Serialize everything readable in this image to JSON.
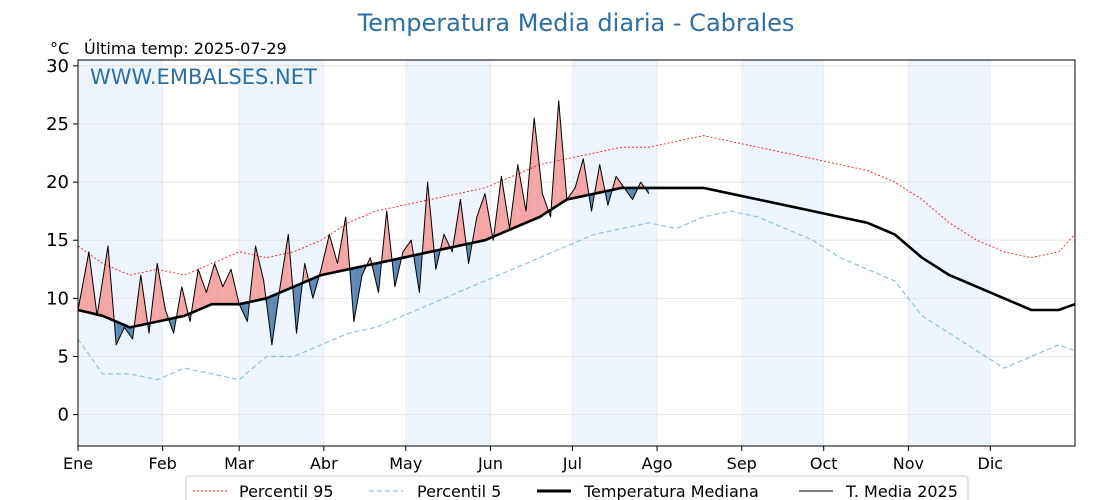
{
  "header": {
    "title": "Temperatura Media diaria - Cabrales",
    "unit": "°C",
    "last_temp": "Última temp: 2025-07-29",
    "watermark": "WWW.EMBALSES.NET"
  },
  "chart_data": {
    "type": "line",
    "title": "Temperatura Media diaria - Cabrales",
    "ylabel": "°C",
    "ylim": [
      -2.7,
      30.5
    ],
    "yticks": [
      0,
      5,
      10,
      15,
      20,
      25,
      30
    ],
    "xlim": [
      1,
      366
    ],
    "months": [
      {
        "label": "Ene",
        "day": 1
      },
      {
        "label": "Feb",
        "day": 32
      },
      {
        "label": "Mar",
        "day": 60
      },
      {
        "label": "Abr",
        "day": 91
      },
      {
        "label": "May",
        "day": 121
      },
      {
        "label": "Jun",
        "day": 152
      },
      {
        "label": "Jul",
        "day": 182
      },
      {
        "label": "Ago",
        "day": 213
      },
      {
        "label": "Sep",
        "day": 244
      },
      {
        "label": "Oct",
        "day": 274
      },
      {
        "label": "Nov",
        "day": 305
      },
      {
        "label": "Dic",
        "day": 335
      }
    ],
    "grid": true,
    "legend_position": "bottom",
    "colors": {
      "p95": "#e8201c",
      "p5": "#8cc4dc",
      "median": "#000000",
      "current": "#000000",
      "above_fill": "#f4a6a6",
      "below_fill": "#5b89b4",
      "shade": "#eef4fb"
    },
    "series": [
      {
        "key": "p95",
        "name": "Percentil 95",
        "x": [
          1,
          10,
          20,
          30,
          40,
          50,
          60,
          70,
          80,
          90,
          100,
          110,
          120,
          130,
          140,
          150,
          160,
          170,
          180,
          190,
          200,
          210,
          220,
          230,
          240,
          250,
          260,
          270,
          280,
          290,
          300,
          310,
          320,
          330,
          340,
          350,
          360,
          366
        ],
        "y": [
          14.5,
          13.0,
          12.0,
          12.5,
          12.0,
          13.0,
          14.0,
          13.5,
          14.0,
          15.0,
          16.5,
          17.5,
          18.0,
          18.5,
          19.0,
          19.5,
          20.5,
          21.5,
          22.0,
          22.5,
          23.0,
          23.0,
          23.5,
          24.0,
          23.5,
          23.0,
          22.5,
          22.0,
          21.5,
          21.0,
          20.0,
          18.5,
          16.5,
          15.0,
          14.0,
          13.5,
          14.0,
          15.5
        ]
      },
      {
        "key": "p5",
        "name": "Percentil 5",
        "x": [
          1,
          10,
          20,
          30,
          40,
          50,
          60,
          70,
          80,
          90,
          100,
          110,
          120,
          130,
          140,
          150,
          160,
          170,
          180,
          190,
          200,
          210,
          220,
          230,
          240,
          250,
          260,
          270,
          280,
          290,
          300,
          310,
          320,
          330,
          340,
          350,
          360,
          366
        ],
        "y": [
          6.5,
          3.5,
          3.5,
          3.0,
          4.0,
          3.5,
          3.0,
          5.0,
          5.0,
          6.0,
          7.0,
          7.5,
          8.5,
          9.5,
          10.5,
          11.5,
          12.5,
          13.5,
          14.5,
          15.5,
          16.0,
          16.5,
          16.0,
          17.0,
          17.5,
          17.0,
          16.0,
          15.0,
          13.5,
          12.5,
          11.5,
          8.5,
          7.0,
          5.5,
          4.0,
          5.0,
          6.0,
          5.5
        ]
      },
      {
        "key": "median",
        "name": "Temperatura Mediana",
        "x": [
          1,
          10,
          20,
          30,
          40,
          50,
          60,
          70,
          80,
          90,
          100,
          110,
          120,
          130,
          140,
          150,
          160,
          170,
          180,
          190,
          200,
          210,
          220,
          230,
          240,
          250,
          260,
          270,
          280,
          290,
          300,
          310,
          320,
          330,
          340,
          350,
          360,
          366
        ],
        "y": [
          9.0,
          8.5,
          7.5,
          8.0,
          8.5,
          9.5,
          9.5,
          10.0,
          11.0,
          12.0,
          12.5,
          13.0,
          13.5,
          14.0,
          14.5,
          15.0,
          16.0,
          17.0,
          18.5,
          19.0,
          19.5,
          19.5,
          19.5,
          19.5,
          19.0,
          18.5,
          18.0,
          17.5,
          17.0,
          16.5,
          15.5,
          13.5,
          12.0,
          11.0,
          10.0,
          9.0,
          9.0,
          9.5
        ]
      },
      {
        "key": "current",
        "name": "T. Media 2025",
        "x": [
          1,
          5,
          8,
          12,
          15,
          18,
          21,
          24,
          27,
          30,
          33,
          36,
          39,
          42,
          45,
          48,
          51,
          54,
          57,
          60,
          63,
          66,
          69,
          72,
          75,
          78,
          81,
          84,
          87,
          90,
          93,
          96,
          99,
          102,
          105,
          108,
          111,
          114,
          117,
          120,
          123,
          126,
          129,
          132,
          135,
          138,
          141,
          144,
          147,
          150,
          153,
          156,
          159,
          162,
          165,
          168,
          171,
          174,
          177,
          180,
          183,
          186,
          189,
          192,
          195,
          198,
          201,
          204,
          207,
          210
        ],
        "y": [
          9.0,
          14.0,
          8.5,
          14.5,
          6.0,
          7.5,
          6.5,
          12.0,
          7.0,
          13.0,
          9.0,
          7.0,
          11.0,
          8.0,
          12.5,
          10.5,
          13.0,
          11.0,
          12.5,
          9.5,
          8.0,
          14.5,
          11.5,
          6.0,
          11.0,
          15.5,
          7.0,
          13.0,
          10.0,
          12.5,
          15.5,
          13.0,
          17.0,
          8.0,
          12.0,
          13.5,
          10.5,
          17.5,
          11.0,
          14.0,
          15.0,
          10.5,
          20.0,
          12.5,
          15.5,
          14.0,
          18.5,
          13.0,
          17.0,
          19.0,
          15.0,
          20.5,
          16.0,
          21.5,
          17.5,
          25.5,
          19.0,
          17.0,
          27.0,
          18.5,
          19.5,
          22.0,
          17.5,
          21.5,
          18.0,
          20.5,
          19.5,
          18.5,
          20.0,
          19.0
        ]
      }
    ]
  }
}
